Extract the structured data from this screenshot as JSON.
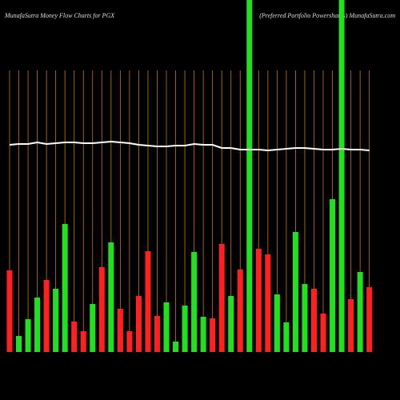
{
  "chart_data": {
    "type": "bar-line",
    "title": "MunafaSutra  Money Flow  Charts for PGX",
    "subtitle": "(Preferred Portfolio Powershares) MunafaSutra.com",
    "categories": [
      null,
      null,
      null,
      null,
      null,
      null,
      null,
      null,
      null,
      null,
      null,
      null,
      null,
      null,
      null,
      null,
      null,
      null,
      null,
      null,
      null,
      null,
      null,
      null,
      null,
      null,
      null,
      null,
      null,
      null,
      null,
      null,
      null,
      null,
      null,
      null,
      null,
      null,
      null,
      null
    ],
    "ylim": [
      0,
      440
    ],
    "grid": true,
    "grid_color": "#c87800",
    "series": [
      {
        "type": "bar",
        "values": [
          102,
          20,
          41,
          68,
          90,
          79,
          160,
          38,
          26,
          60,
          106,
          137,
          54,
          26,
          70,
          126,
          45,
          62,
          13,
          58,
          125,
          44,
          42,
          135,
          70,
          103,
          440,
          129,
          122,
          72,
          37,
          150,
          85,
          79,
          48,
          191,
          440,
          66,
          100,
          81
        ],
        "colors": [
          "#ff2020",
          "#20e020",
          "#20e020",
          "#20e020",
          "#ff2020",
          "#20e020",
          "#20e020",
          "#ff2020",
          "#ff2020",
          "#20e020",
          "#ff2020",
          "#20e020",
          "#ff2020",
          "#ff2020",
          "#ff2020",
          "#ff2020",
          "#ff2020",
          "#20e020",
          "#20e020",
          "#20e020",
          "#20e020",
          "#20e020",
          "#ff2020",
          "#ff2020",
          "#20e020",
          "#ff2020",
          "#20e020",
          "#ff2020",
          "#ff2020",
          "#20e020",
          "#20e020",
          "#20e020",
          "#20e020",
          "#ff2020",
          "#ff2020",
          "#20e020",
          "#20e020",
          "#ff2020",
          "#20e020",
          "#ff2020"
        ]
      },
      {
        "type": "line",
        "color": "#ffffff",
        "values": [
          259,
          260,
          260,
          262,
          260,
          261,
          262,
          262,
          261,
          261,
          262,
          263,
          262,
          261,
          259,
          258,
          257,
          257,
          258,
          258,
          260,
          259,
          259,
          255,
          255,
          253,
          253,
          253,
          252,
          253,
          254,
          255,
          255,
          254,
          253,
          253,
          254,
          253,
          253,
          252
        ]
      }
    ]
  }
}
